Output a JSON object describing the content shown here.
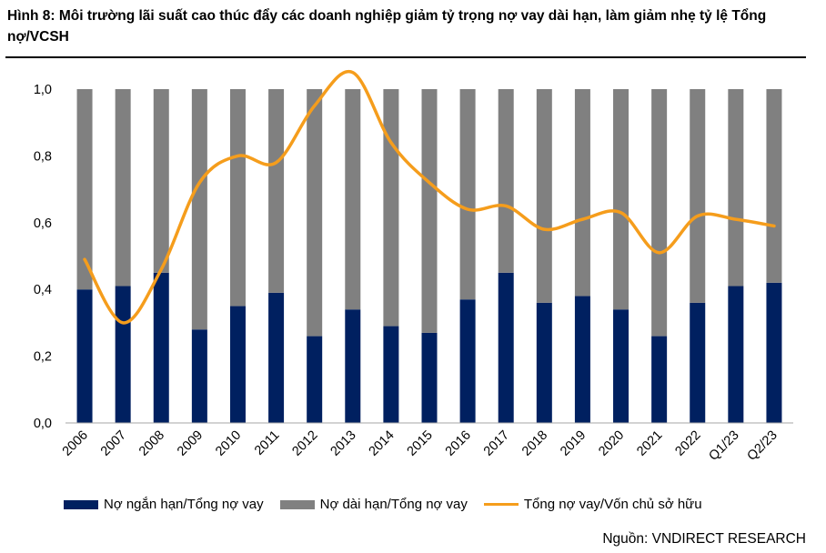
{
  "title": "Hình 8: Môi trường lãi suất cao thúc đẩy các doanh nghiệp giảm tỷ trọng nợ vay dài hạn, làm giảm nhẹ tỷ lệ Tổng nợ/VCSH",
  "source": "Nguồn: VNDIRECT RESEARCH",
  "colors": {
    "short": "#002060",
    "long": "#808080",
    "line": "#f59d1c"
  },
  "chart_data": {
    "type": "bar",
    "stacked": true,
    "categories": [
      "2006",
      "2007",
      "2008",
      "2009",
      "2010",
      "2011",
      "2012",
      "2013",
      "2014",
      "2015",
      "2016",
      "2017",
      "2018",
      "2019",
      "2020",
      "2021",
      "2022",
      "Q1/23",
      "Q2/23"
    ],
    "ylim": [
      0,
      1.0
    ],
    "yticks": [
      "0,0",
      "0,2",
      "0,4",
      "0,6",
      "0,8",
      "1,0"
    ],
    "series": [
      {
        "name": "Nợ ngắn hạn/Tổng nợ vay",
        "type": "bar",
        "values": [
          0.4,
          0.41,
          0.45,
          0.28,
          0.35,
          0.39,
          0.26,
          0.34,
          0.29,
          0.27,
          0.37,
          0.45,
          0.36,
          0.38,
          0.34,
          0.26,
          0.36,
          0.41,
          0.42
        ]
      },
      {
        "name": "Nợ dài hạn/Tổng nợ vay",
        "type": "bar",
        "values": [
          0.6,
          0.59,
          0.55,
          0.72,
          0.65,
          0.61,
          0.74,
          0.66,
          0.71,
          0.73,
          0.63,
          0.55,
          0.64,
          0.62,
          0.66,
          0.74,
          0.64,
          0.59,
          0.58
        ]
      },
      {
        "name": "Tổng nợ vay/Vốn chủ sở hữu",
        "type": "line",
        "values": [
          0.49,
          0.3,
          0.46,
          0.72,
          0.8,
          0.78,
          0.95,
          1.05,
          0.84,
          0.72,
          0.64,
          0.65,
          0.58,
          0.61,
          0.63,
          0.51,
          0.62,
          0.61,
          0.59
        ]
      }
    ]
  }
}
